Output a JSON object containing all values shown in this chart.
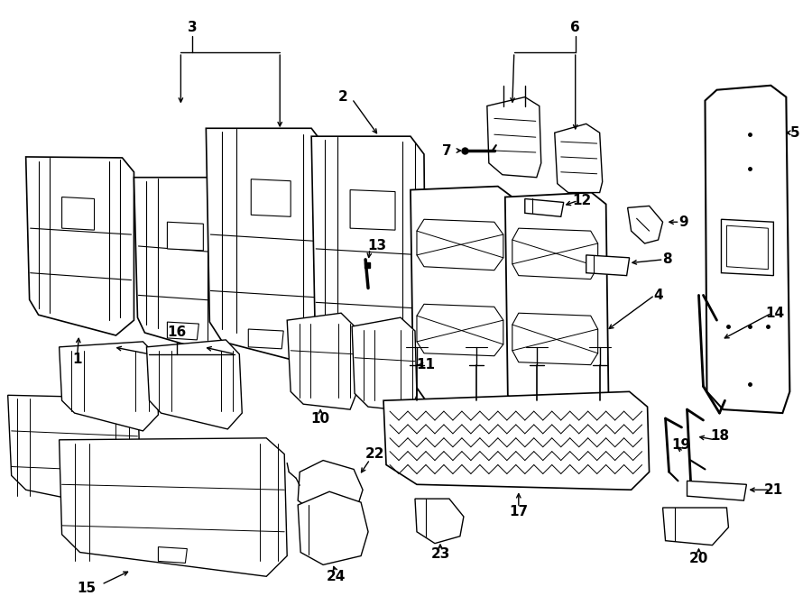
{
  "bg_color": "#ffffff",
  "line_color": "#000000",
  "figsize": [
    9.0,
    6.61
  ],
  "dpi": 100,
  "parts_image_b64": ""
}
